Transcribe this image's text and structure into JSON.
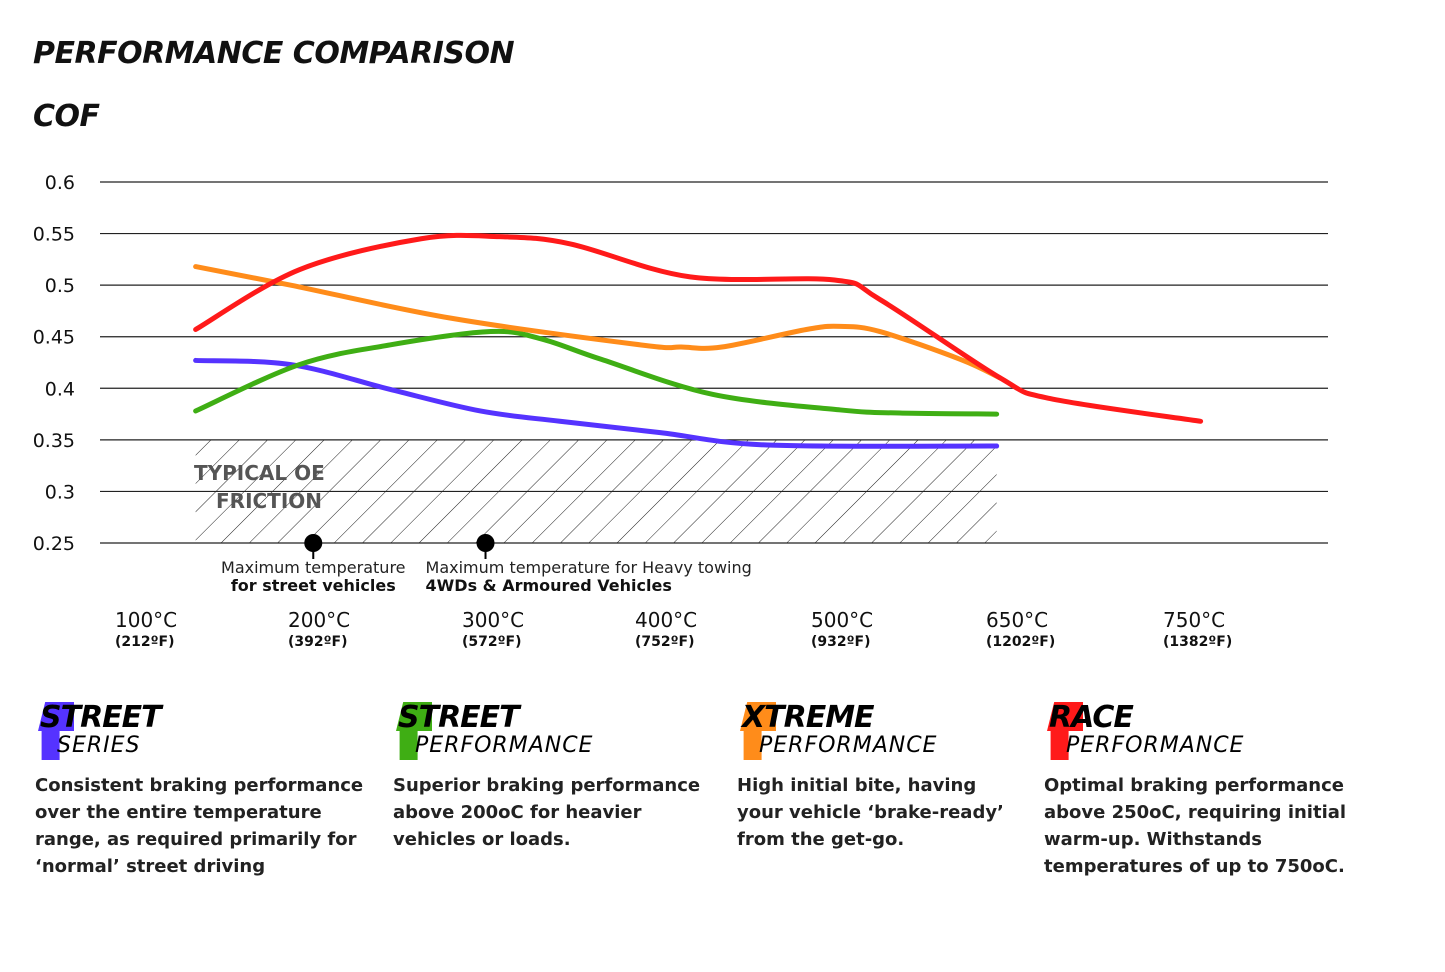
{
  "title": "PERFORMANCE COMPARISON",
  "subtitle": "COF",
  "chart_data": {
    "type": "line",
    "ylabel": "COF",
    "ylim": [
      0.25,
      0.6
    ],
    "yticks": [
      "0.6",
      "0.55",
      "0.5",
      "0.45",
      "0.4",
      "0.35",
      "0.3",
      "0.25"
    ],
    "grid": true,
    "xticks": [
      {
        "c": "100°C",
        "f": "(212ºF)",
        "t": 100
      },
      {
        "c": "200°C",
        "f": "(392ºF)",
        "t": 200
      },
      {
        "c": "300°C",
        "f": "(572ºF)",
        "t": 300
      },
      {
        "c": "400°C",
        "f": "(752ºF)",
        "t": 400
      },
      {
        "c": "500°C",
        "f": "(932ºF)",
        "t": 500
      },
      {
        "c": "650°C",
        "f": "(1202ºF)",
        "t": 650
      },
      {
        "c": "750°C",
        "f": "(1382ºF)",
        "t": 750
      }
    ],
    "series": [
      {
        "color": "#ff1a1a",
        "x": [
          131,
          191,
          261,
          306,
          347,
          416,
          498,
          536,
          639,
          671,
          756
        ],
        "y": [
          0.457,
          0.515,
          0.545,
          0.547,
          0.54,
          0.508,
          0.505,
          0.486,
          0.41,
          0.39,
          0.368
        ]
      },
      {
        "color": "#ff8c1a",
        "x": [
          131,
          186,
          278,
          388,
          411,
          434,
          482,
          502,
          536,
          605,
          639
        ],
        "y": [
          0.518,
          0.5,
          0.468,
          0.442,
          0.44,
          0.44,
          0.457,
          0.46,
          0.455,
          0.428,
          0.41
        ]
      },
      {
        "color": "#3fae14",
        "x": [
          131,
          191,
          243,
          301,
          330,
          365,
          429,
          502,
          553,
          636
        ],
        "y": [
          0.378,
          0.423,
          0.442,
          0.455,
          0.448,
          0.428,
          0.394,
          0.379,
          0.376,
          0.375
        ]
      },
      {
        "color": "#5533ff",
        "x": [
          131,
          186,
          243,
          295,
          341,
          399,
          460,
          636
        ],
        "y": [
          0.427,
          0.423,
          0.399,
          0.378,
          0.368,
          0.357,
          0.345,
          0.344
        ]
      }
    ],
    "region": {
      "label_1": "TYPICAL OE",
      "label_2": "FRICTION",
      "x": [
        131,
        636
      ],
      "y": [
        0.25,
        0.35
      ]
    },
    "annotations": [
      {
        "x": 199,
        "y": 0.25,
        "line1": "Maximum temperature",
        "line2": "for street vehicles"
      },
      {
        "x": 298,
        "y": 0.25,
        "line1": "Maximum temperature for Heavy towing",
        "line2": "4WDs & Armoured Vehicles"
      }
    ]
  },
  "legend": [
    {
      "big": "STREET",
      "small": "SERIES",
      "color": "#5533ff",
      "desc": "Consistent braking performance over the entire temperature range, as required primarily for ‘normal’ street driving"
    },
    {
      "big": "STREET",
      "small": "PERFORMANCE",
      "color": "#3fae14",
      "desc": "Superior braking performance above 200oC for heavier vehicles or loads."
    },
    {
      "big": "XTREME",
      "small": "PERFORMANCE",
      "color": "#ff8c1a",
      "desc": "High initial bite, having your vehicle ‘brake-ready’ from the get-go."
    },
    {
      "big": "RACE",
      "small": "PERFORMANCE",
      "color": "#ff1a1a",
      "desc": "Optimal braking performance above 250oC, requiring initial warm-up. Withstands temperatures of up to 750oC."
    }
  ]
}
